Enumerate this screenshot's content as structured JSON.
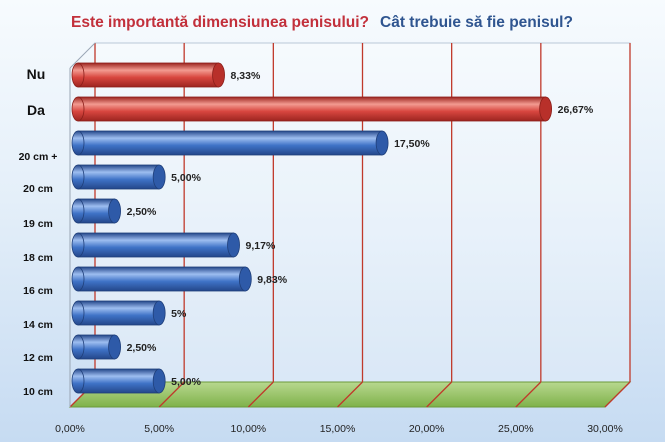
{
  "titles": {
    "left": "Este importantă dimensiunea penisului?",
    "right": "Cât trebuie să fie penisul?"
  },
  "colors": {
    "background_top": "#f7fbfe",
    "background_bottom": "#c6dbf2",
    "title_left": "#c2303b",
    "title_right": "#2f5590",
    "red_bar": "#d8463f",
    "blue_bar": "#3f73c7",
    "gridline": "#c0392b",
    "floor": "#7fb24a"
  },
  "chart_data": {
    "type": "bar",
    "orientation": "horizontal",
    "categories": [
      "Nu",
      "Da",
      "20 cm +",
      "20 cm",
      "19 cm",
      "18 cm",
      "16 cm",
      "14 cm",
      "12 cm",
      "10 cm"
    ],
    "values": [
      8.33,
      26.67,
      17.5,
      5.0,
      2.5,
      9.17,
      9.83,
      5.0,
      2.5,
      5.0
    ],
    "value_labels": [
      "8,33%",
      "26,67%",
      "17,50%",
      "5,00%",
      "2,50%",
      "9,17%",
      "9,83%",
      "5%",
      "2,50%",
      "5,00%"
    ],
    "bar_colors": [
      "red",
      "red",
      "blue",
      "blue",
      "blue",
      "blue",
      "blue",
      "blue",
      "blue",
      "blue"
    ],
    "xlim": [
      0,
      30
    ],
    "xticks": [
      0,
      5,
      10,
      15,
      20,
      25,
      30
    ],
    "xtick_labels": [
      "0,00%",
      "5,00%",
      "10,00%",
      "15,00%",
      "20,00%",
      "25,00%",
      "30,00%"
    ],
    "grid": true
  }
}
